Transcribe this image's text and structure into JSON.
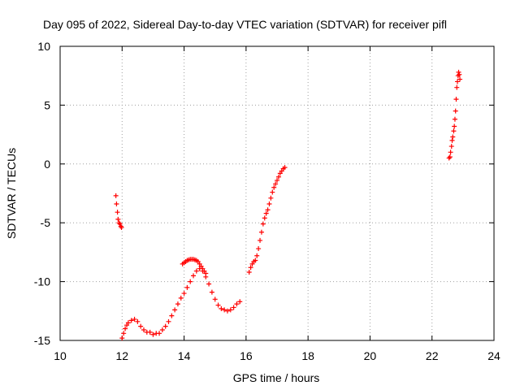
{
  "chart_data": {
    "type": "scatter",
    "title": "Day 095 of 2022, Sidereal Day-to-day VTEC variation (SDTVAR) for receiver pifl",
    "xlabel": "GPS time / hours",
    "ylabel": "SDTVAR / TECUs",
    "xlim": [
      10,
      24
    ],
    "ylim": [
      -15,
      10
    ],
    "xticks": [
      10,
      12,
      14,
      16,
      18,
      20,
      22,
      24
    ],
    "yticks": [
      -15,
      -10,
      -5,
      0,
      5,
      10
    ],
    "grid": true,
    "marker": "+",
    "color": "#ff0000",
    "series": [
      {
        "name": "segment-1",
        "x": [
          11.8,
          11.82,
          11.85,
          11.87,
          11.9,
          11.93,
          11.96,
          11.98
        ],
        "y": [
          -2.7,
          -3.4,
          -4.1,
          -4.7,
          -5.0,
          -5.1,
          -5.3,
          -5.4
        ]
      },
      {
        "name": "segment-2",
        "x": [
          12.0,
          12.05,
          12.1,
          12.15,
          12.2,
          12.3,
          12.4,
          12.5,
          12.6,
          12.7,
          12.8,
          12.9,
          13.0,
          13.1,
          13.2,
          13.3,
          13.4,
          13.5,
          13.6,
          13.7,
          13.8,
          13.9,
          14.0,
          14.1,
          14.2,
          14.3,
          14.4,
          14.5,
          14.6,
          14.7,
          14.8,
          14.9,
          15.0,
          15.1,
          15.2,
          15.3,
          15.4,
          15.5,
          15.6,
          15.7,
          15.8
        ],
        "y": [
          -14.8,
          -14.4,
          -14.0,
          -13.7,
          -13.5,
          -13.3,
          -13.2,
          -13.4,
          -13.8,
          -14.1,
          -14.3,
          -14.3,
          -14.5,
          -14.4,
          -14.4,
          -14.1,
          -13.8,
          -13.4,
          -12.9,
          -12.4,
          -11.9,
          -11.4,
          -11.0,
          -10.5,
          -10.0,
          -9.5,
          -9.1,
          -8.9,
          -9.1,
          -9.6,
          -10.2,
          -10.9,
          -11.5,
          -12.0,
          -12.3,
          -12.4,
          -12.5,
          -12.4,
          -12.2,
          -11.9,
          -11.7
        ]
      },
      {
        "name": "segment-3",
        "x": [
          13.95,
          14.0,
          14.05,
          14.1,
          14.15,
          14.2,
          14.25,
          14.3,
          14.35,
          14.4,
          14.45,
          14.5,
          14.55,
          14.6,
          14.65,
          14.7
        ],
        "y": [
          -8.5,
          -8.4,
          -8.3,
          -8.2,
          -8.15,
          -8.1,
          -8.1,
          -8.1,
          -8.15,
          -8.2,
          -8.3,
          -8.5,
          -8.7,
          -8.9,
          -9.1,
          -9.3
        ]
      },
      {
        "name": "segment-4",
        "x": [
          16.1,
          16.15,
          16.2,
          16.25,
          16.3,
          16.35,
          16.4,
          16.45,
          16.5,
          16.55,
          16.6,
          16.65,
          16.7,
          16.75,
          16.8,
          16.85,
          16.9,
          16.95,
          17.0,
          17.05,
          17.1,
          17.15,
          17.2,
          17.25
        ],
        "y": [
          -9.2,
          -8.8,
          -8.5,
          -8.3,
          -8.2,
          -7.8,
          -7.2,
          -6.5,
          -5.8,
          -5.1,
          -4.6,
          -4.2,
          -3.9,
          -3.4,
          -2.9,
          -2.4,
          -2.0,
          -1.7,
          -1.4,
          -1.1,
          -0.8,
          -0.6,
          -0.4,
          -0.3
        ]
      },
      {
        "name": "segment-5",
        "x": [
          22.55,
          22.58,
          22.6,
          22.63,
          22.65,
          22.67,
          22.7,
          22.72,
          22.74,
          22.76,
          22.78,
          22.8,
          22.82,
          22.84,
          22.86,
          22.88,
          22.9
        ],
        "y": [
          0.5,
          0.6,
          1.0,
          1.5,
          2.0,
          2.3,
          2.8,
          3.2,
          3.8,
          4.5,
          5.5,
          6.5,
          7.0,
          7.5,
          7.8,
          7.6,
          7.2
        ]
      }
    ]
  }
}
